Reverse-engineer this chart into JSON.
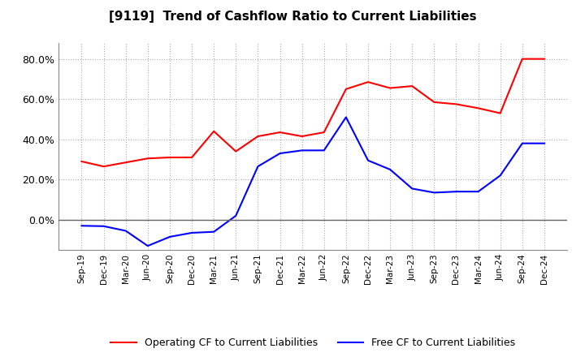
{
  "title": "[9119]  Trend of Cashflow Ratio to Current Liabilities",
  "x_labels": [
    "Sep-19",
    "Dec-19",
    "Mar-20",
    "Jun-20",
    "Sep-20",
    "Dec-20",
    "Mar-21",
    "Jun-21",
    "Sep-21",
    "Dec-21",
    "Mar-22",
    "Jun-22",
    "Sep-22",
    "Dec-22",
    "Mar-23",
    "Jun-23",
    "Sep-23",
    "Dec-23",
    "Mar-24",
    "Jun-24",
    "Sep-24",
    "Dec-24"
  ],
  "operating_cf": [
    0.29,
    0.265,
    0.285,
    0.305,
    0.31,
    0.31,
    0.44,
    0.34,
    0.415,
    0.435,
    0.415,
    0.435,
    0.65,
    0.685,
    0.655,
    0.665,
    0.585,
    0.575,
    0.555,
    0.53,
    0.8,
    0.8
  ],
  "free_cf": [
    -0.03,
    -0.032,
    -0.055,
    -0.13,
    -0.085,
    -0.065,
    -0.06,
    0.02,
    0.265,
    0.33,
    0.345,
    0.345,
    0.51,
    0.295,
    0.25,
    0.155,
    0.135,
    0.14,
    0.14,
    0.22,
    0.38,
    0.38
  ],
  "operating_color": "#FF0000",
  "free_color": "#0000FF",
  "ylim_min": -0.15,
  "ylim_max": 0.88,
  "ytick_vals": [
    0.0,
    0.2,
    0.4,
    0.6,
    0.8
  ],
  "background_color": "#FFFFFF",
  "grid_color": "#AAAAAA",
  "legend_operating": "Operating CF to Current Liabilities",
  "legend_free": "Free CF to Current Liabilities"
}
